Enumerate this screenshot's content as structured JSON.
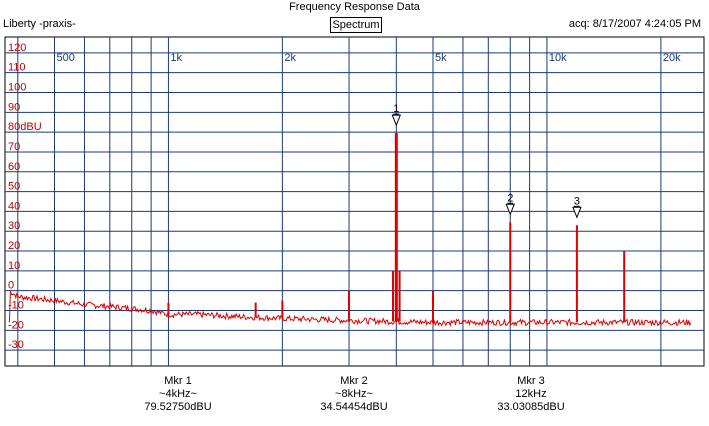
{
  "header": {
    "title": "Frequency Response Data",
    "app_name": "Liberty -praxis-",
    "mode_button": "Spectrum",
    "acquired": "acq: 8/17/2007 4:24:05 PM"
  },
  "markers": [
    {
      "name": "Mkr 1",
      "freq": "~4kHz~",
      "level": "79.52750dBU",
      "label": "1"
    },
    {
      "name": "Mkr 2",
      "freq": "~8kHz~",
      "level": "34.54454dBU",
      "label": "2"
    },
    {
      "name": "Mkr 3",
      "freq": "12kHz",
      "level": "33.03085dBU",
      "label": "3"
    }
  ],
  "colors": {
    "grid": "#1a3a78",
    "trace": "#e00000",
    "axis_label": "#c00000",
    "freq_label": "#1a3a78"
  },
  "chart_data": {
    "type": "line",
    "xscale": "log",
    "xlim": [
      370,
      26000
    ],
    "ylim": [
      -38,
      128
    ],
    "grid": true,
    "y_ticks": [
      120,
      110,
      100,
      90,
      80,
      70,
      60,
      50,
      40,
      30,
      20,
      10,
      0,
      -10,
      -20,
      -30
    ],
    "y_tick_labels": [
      "120",
      "110",
      "100",
      "90",
      "80dBU",
      "70",
      "60",
      "50",
      "40",
      "30",
      "20",
      "10",
      "0",
      "-10",
      "-20",
      "-30"
    ],
    "x_label_ticks": [
      500,
      1000,
      2000,
      5000,
      10000,
      20000
    ],
    "x_tick_labels": [
      "500",
      "1k",
      "2k",
      "5k",
      "10k",
      "20k"
    ],
    "x_minor_ticks": [
      400,
      600,
      700,
      800,
      900,
      3000,
      4000,
      6000,
      7000,
      8000,
      9000,
      30000
    ],
    "noise_floor": [
      [
        380,
        0
      ],
      [
        400,
        -3
      ],
      [
        450,
        -4
      ],
      [
        500,
        -5
      ],
      [
        550,
        -6
      ],
      [
        600,
        -7
      ],
      [
        700,
        -8
      ],
      [
        800,
        -9
      ],
      [
        900,
        -10
      ],
      [
        1000,
        -12
      ],
      [
        1200,
        -12
      ],
      [
        1500,
        -13
      ],
      [
        2000,
        -14
      ],
      [
        3000,
        -15
      ],
      [
        5000,
        -16
      ],
      [
        10000,
        -16
      ],
      [
        24000,
        -16
      ]
    ],
    "peaks": [
      {
        "x": 4000,
        "y": 79.5
      },
      {
        "x": 3920,
        "y": 10
      },
      {
        "x": 4080,
        "y": 10
      },
      {
        "x": 8000,
        "y": 34.5
      },
      {
        "x": 12000,
        "y": 33
      },
      {
        "x": 16000,
        "y": 20
      },
      {
        "x": 5000,
        "y": 0
      },
      {
        "x": 3000,
        "y": 0
      },
      {
        "x": 2000,
        "y": -5
      },
      {
        "x": 1000,
        "y": -6
      },
      {
        "x": 1700,
        "y": -6
      }
    ],
    "marker_points": [
      {
        "label": "1",
        "x": 4000,
        "y": 79.5
      },
      {
        "label": "2",
        "x": 8000,
        "y": 34.5
      },
      {
        "label": "3",
        "x": 12000,
        "y": 33
      }
    ]
  }
}
